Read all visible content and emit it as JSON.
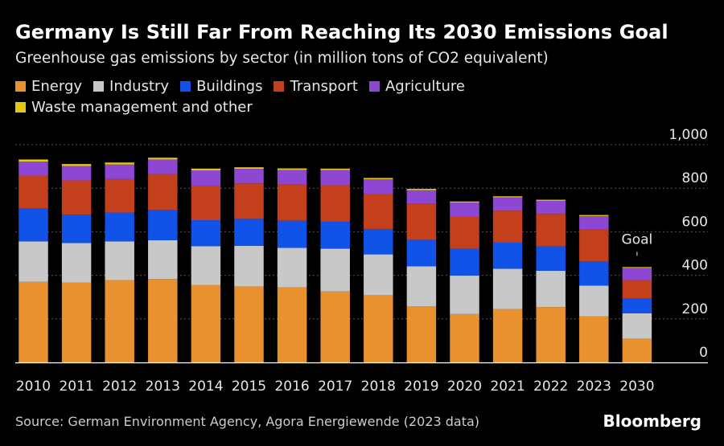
{
  "header": {
    "title": "Germany Is Still Far From Reaching Its 2030 Emissions Goal",
    "subtitle": "Greenhouse gas emissions by sector (in million tons of CO2 equivalent)"
  },
  "footer": {
    "source": "Source: German Environment Agency, Agora Energiewende (2023 data)",
    "brand": "Bloomberg"
  },
  "chart_data": {
    "type": "bar",
    "stacked": true,
    "title": "Germany Is Still Far From Reaching Its 2030 Emissions Goal",
    "subtitle": "Greenhouse gas emissions by sector (in million tons of CO2 equivalent)",
    "categories": [
      "2010",
      "2011",
      "2012",
      "2013",
      "2014",
      "2015",
      "2016",
      "2017",
      "2018",
      "2019",
      "2020",
      "2021",
      "2022",
      "2023",
      "2030"
    ],
    "ylim": [
      0,
      1000
    ],
    "yticks": [
      0,
      200,
      400,
      600,
      800,
      1000
    ],
    "ytick_labels": [
      "0",
      "200",
      "400",
      "600",
      "800",
      "1,000"
    ],
    "grid": true,
    "legend_position": "top-left",
    "series": [
      {
        "name": "Energy",
        "color": "#e8912e",
        "values": [
          370,
          367,
          378,
          383,
          356,
          349,
          344,
          326,
          310,
          257,
          222,
          245,
          254,
          212,
          108
        ]
      },
      {
        "name": "Industry",
        "color": "#c8c8c8",
        "values": [
          186,
          181,
          178,
          178,
          178,
          186,
          182,
          196,
          186,
          184,
          177,
          185,
          167,
          141,
          118
        ]
      },
      {
        "name": "Buildings",
        "color": "#1153e8",
        "values": [
          150,
          130,
          132,
          140,
          119,
          124,
          125,
          124,
          117,
          122,
          123,
          120,
          112,
          112,
          67
        ]
      },
      {
        "name": "Transport",
        "color": "#c4401c",
        "values": [
          152,
          158,
          154,
          164,
          159,
          163,
          166,
          168,
          162,
          165,
          146,
          147,
          149,
          146,
          85
        ]
      },
      {
        "name": "Agriculture",
        "color": "#8e47d2",
        "values": [
          64,
          66,
          67,
          67,
          70,
          67,
          67,
          69,
          66,
          63,
          66,
          61,
          60,
          61,
          56
        ]
      },
      {
        "name": "Waste management and other",
        "color": "#e2c713",
        "values": [
          10,
          9,
          9,
          8,
          8,
          7,
          7,
          7,
          6,
          6,
          5,
          5,
          5,
          5,
          4
        ]
      }
    ],
    "annotations": [
      {
        "category": "2030",
        "text": "Goal"
      }
    ]
  }
}
